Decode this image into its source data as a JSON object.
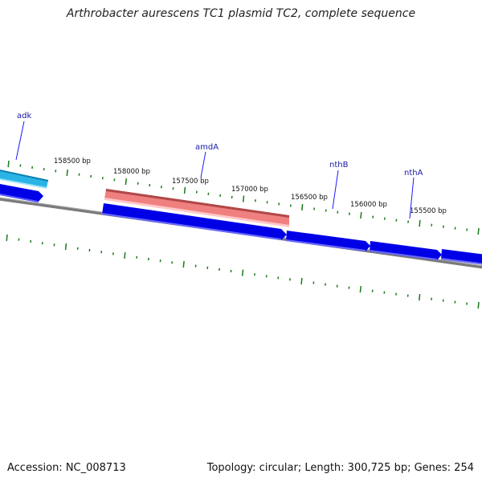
{
  "header": {
    "title": "Arthrobacter aurescens TC1 plasmid TC2, complete sequence"
  },
  "footer": {
    "accession": "Accession: NC_008713",
    "summary": "Topology: circular; Length: 300,725 bp; Genes: 254"
  },
  "ticks": [
    {
      "label": "158500 bp"
    },
    {
      "label": "158000 bp"
    },
    {
      "label": "157500 bp"
    },
    {
      "label": "157000 bp"
    },
    {
      "label": "156500 bp"
    },
    {
      "label": "156000 bp"
    },
    {
      "label": "155500 bp"
    }
  ],
  "genes": [
    {
      "label": "adk",
      "color": "#2ab4e6"
    },
    {
      "label": "amdA",
      "color": "#f08080"
    },
    {
      "label": "nthB",
      "color": "#0000e6"
    },
    {
      "label": "nthA",
      "color": "#0000e6"
    }
  ],
  "colors": {
    "backbone": "#808080",
    "tick": "#1a7a1a",
    "forward_gene": "#0000e6",
    "label_line": "#1a1aff"
  }
}
